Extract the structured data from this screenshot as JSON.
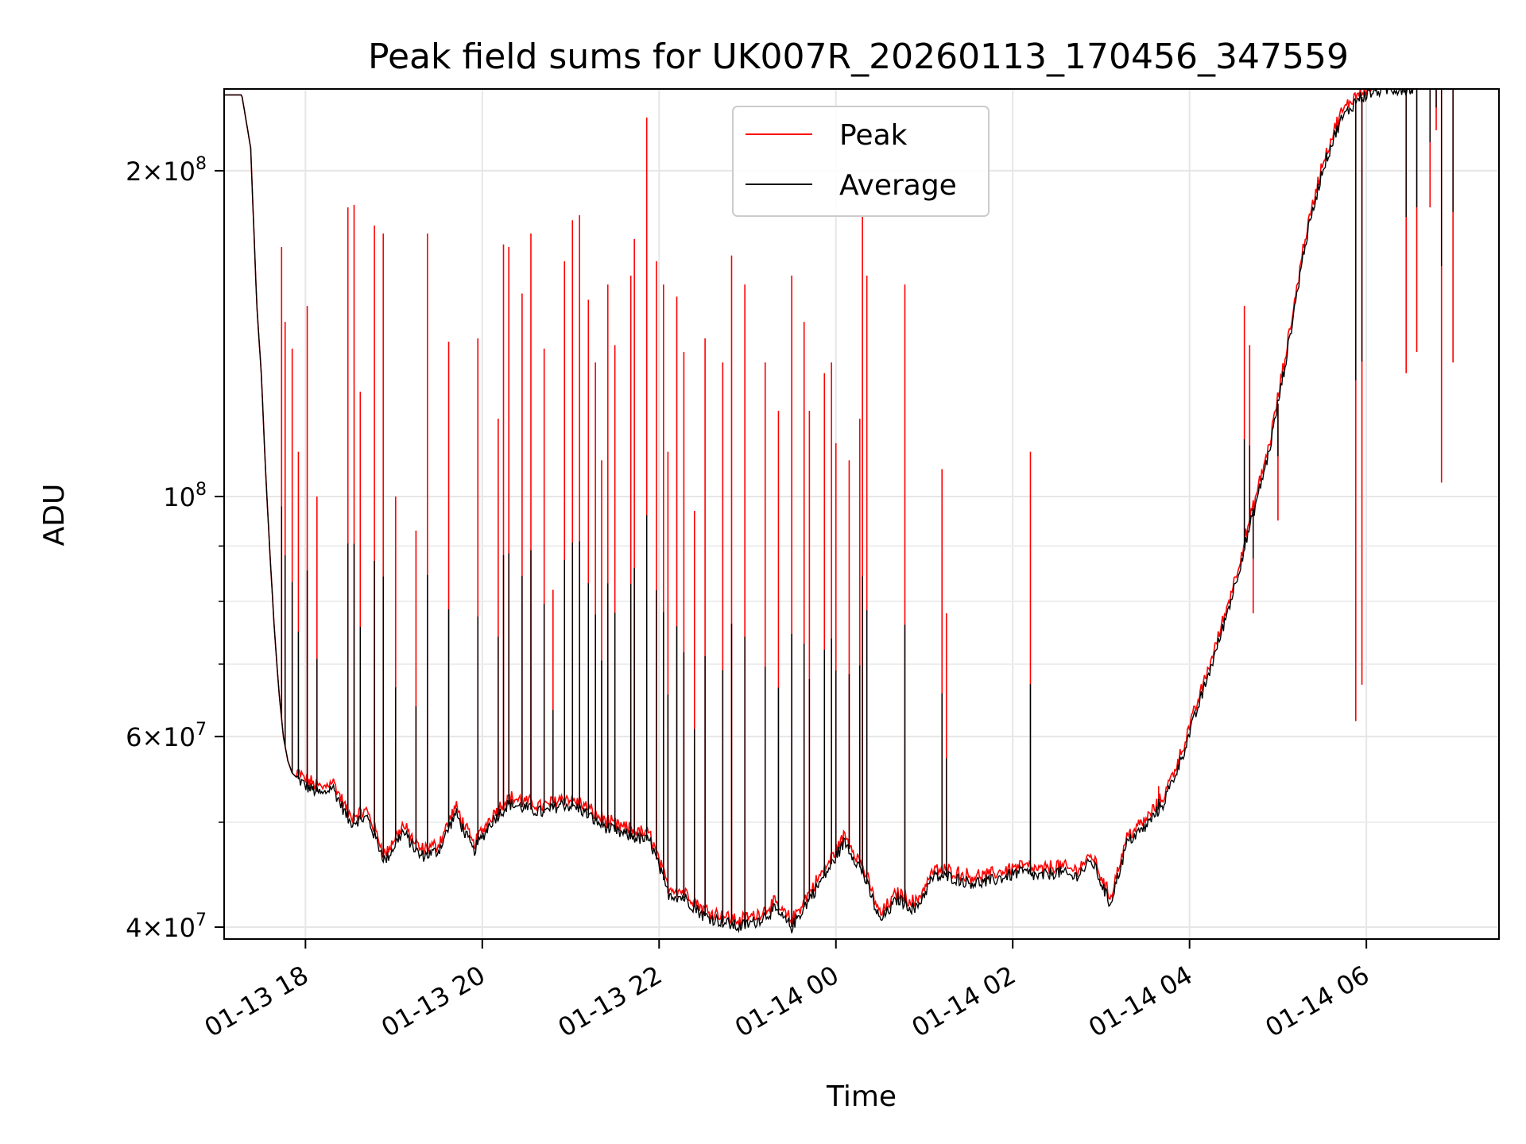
{
  "chart_data": {
    "type": "line",
    "title": "Peak field sums for UK007R_20260113_170456_347559",
    "xlabel": "Time",
    "ylabel": "ADU",
    "yscale": "log",
    "ylim": [
      39000000,
      238000000
    ],
    "xlim_hours": [
      -0.92,
      13.5
    ],
    "grid": true,
    "legend": {
      "location": "upper center",
      "entries": [
        {
          "label": "Peak",
          "color": "#ff0000"
        },
        {
          "label": "Average",
          "color": "#000000"
        }
      ]
    },
    "x_ticks": [
      {
        "hour": 0,
        "label": "01-13 18"
      },
      {
        "hour": 2,
        "label": "01-13 20"
      },
      {
        "hour": 4,
        "label": "01-13 22"
      },
      {
        "hour": 6,
        "label": "01-14 00"
      },
      {
        "hour": 8,
        "label": "01-14 02"
      },
      {
        "hour": 10,
        "label": "01-14 04"
      },
      {
        "hour": 12,
        "label": "01-14 06"
      }
    ],
    "y_ticks": [
      {
        "value": 40000000,
        "mantissa": "4",
        "exp": "7"
      },
      {
        "value": 60000000,
        "mantissa": "6",
        "exp": "7"
      },
      {
        "value": 100000000,
        "mantissa": "",
        "exp": "8"
      },
      {
        "value": 200000000,
        "mantissa": "2",
        "exp": "8"
      }
    ],
    "y_minor_ticks": [
      50000000,
      70000000,
      80000000,
      90000000
    ],
    "series": [
      {
        "name": "Average",
        "color": "#000000",
        "x_hours": [
          -0.72,
          -0.62,
          -0.55,
          -0.5,
          -0.45,
          -0.4,
          -0.35,
          -0.3,
          -0.25,
          -0.2,
          -0.15,
          -0.1,
          -0.05,
          0,
          0.1,
          0.2,
          0.3,
          0.5,
          0.7,
          0.9,
          1.1,
          1.3,
          1.5,
          1.7,
          1.9,
          2.1,
          2.3,
          2.5,
          2.7,
          2.9,
          3.1,
          3.3,
          3.5,
          3.7,
          3.9,
          4.1,
          4.3,
          4.5,
          4.7,
          4.9,
          5.1,
          5.3,
          5.5,
          5.7,
          5.9,
          6.1,
          6.3,
          6.5,
          6.7,
          6.9,
          7.1,
          7.3,
          7.5,
          7.7,
          7.9,
          8.1,
          8.3,
          8.5,
          8.7,
          8.9,
          9.1,
          9.3,
          9.5,
          9.7,
          9.9,
          10.1,
          10.3,
          10.5,
          10.7,
          10.9,
          11.1,
          11.3,
          11.5,
          11.7,
          11.9,
          12.1,
          12.3,
          12.5,
          12.55,
          12.6,
          12.65,
          12.7,
          12.75,
          12.8,
          12.85,
          12.9,
          12.95,
          13.0,
          13.05,
          13.1,
          13.15,
          13.2
        ],
        "values": [
          235000000,
          210000000,
          150000000,
          130000000,
          105000000,
          88000000,
          75000000,
          66000000,
          60000000,
          57000000,
          55500000,
          55000000,
          54500000,
          54000000,
          53500000,
          53000000,
          54000000,
          50000000,
          50500000,
          46000000,
          49000000,
          46500000,
          47000000,
          51000000,
          47000000,
          50000000,
          52000000,
          51500000,
          51000000,
          52000000,
          51500000,
          50000000,
          49000000,
          48500000,
          48000000,
          43000000,
          42500000,
          41000000,
          40500000,
          40000000,
          40500000,
          41500000,
          40000000,
          42500000,
          45000000,
          48000000,
          45000000,
          40500000,
          42500000,
          41500000,
          44500000,
          44500000,
          44000000,
          44000000,
          44500000,
          45000000,
          44500000,
          45000000,
          44500000,
          46000000,
          42000000,
          48000000,
          49500000,
          52000000,
          57000000,
          64000000,
          72000000,
          82000000,
          95000000,
          110000000,
          135000000,
          170000000,
          200000000,
          222000000,
          233000000,
          237000000,
          238000000,
          238000000,
          238000000,
          238000000,
          238000000,
          238000000,
          238000000,
          238000000,
          238000000,
          238000000,
          238000000,
          238000000,
          238000000,
          238000000,
          238000000,
          238000000
        ]
      },
      {
        "name": "Peak",
        "color": "#ff0000",
        "spikes": [
          [
            -0.55,
            150000000
          ],
          [
            -0.27,
            170000000
          ],
          [
            -0.23,
            145000000
          ],
          [
            -0.15,
            137000000
          ],
          [
            -0.08,
            110000000
          ],
          [
            0.02,
            150000000
          ],
          [
            0.13,
            100000000
          ],
          [
            0.48,
            185000000
          ],
          [
            0.55,
            186000000
          ],
          [
            0.62,
            125000000
          ],
          [
            0.78,
            178000000
          ],
          [
            0.88,
            175000000
          ],
          [
            1.02,
            100000000
          ],
          [
            1.25,
            93000000
          ],
          [
            1.38,
            175000000
          ],
          [
            1.62,
            139000000
          ],
          [
            1.95,
            140000000
          ],
          [
            2.18,
            118000000
          ],
          [
            2.24,
            171000000
          ],
          [
            2.3,
            170000000
          ],
          [
            2.45,
            154000000
          ],
          [
            2.55,
            175000000
          ],
          [
            2.7,
            137000000
          ],
          [
            2.8,
            82000000
          ],
          [
            2.93,
            165000000
          ],
          [
            3.02,
            180000000
          ],
          [
            3.1,
            182000000
          ],
          [
            3.2,
            152000000
          ],
          [
            3.28,
            133000000
          ],
          [
            3.35,
            108000000
          ],
          [
            3.42,
            157000000
          ],
          [
            3.5,
            138000000
          ],
          [
            3.68,
            160000000
          ],
          [
            3.72,
            173000000
          ],
          [
            3.86,
            224000000
          ],
          [
            3.97,
            165000000
          ],
          [
            4.05,
            157000000
          ],
          [
            4.1,
            110000000
          ],
          [
            4.2,
            153000000
          ],
          [
            4.28,
            136000000
          ],
          [
            4.4,
            97000000
          ],
          [
            4.52,
            140000000
          ],
          [
            4.72,
            133000000
          ],
          [
            4.82,
            167000000
          ],
          [
            4.97,
            157000000
          ],
          [
            5.2,
            133000000
          ],
          [
            5.35,
            120000000
          ],
          [
            5.5,
            160000000
          ],
          [
            5.64,
            145000000
          ],
          [
            5.7,
            120000000
          ],
          [
            5.87,
            130000000
          ],
          [
            5.95,
            133000000
          ],
          [
            6.0,
            112000000
          ],
          [
            6.15,
            108000000
          ],
          [
            6.27,
            118000000
          ],
          [
            6.3,
            182000000
          ],
          [
            6.35,
            160000000
          ],
          [
            6.78,
            157000000
          ],
          [
            7.2,
            106000000
          ],
          [
            7.25,
            78000000
          ],
          [
            8.2,
            110000000
          ],
          [
            9.65,
            54000000
          ],
          [
            10.62,
            150000000
          ],
          [
            10.68,
            138000000
          ],
          [
            10.72,
            78000000
          ],
          [
            11.0,
            95000000
          ],
          [
            11.88,
            62000000
          ],
          [
            11.95,
            67000000
          ],
          [
            12.45,
            130000000
          ],
          [
            12.57,
            136000000
          ],
          [
            12.72,
            185000000
          ],
          [
            12.79,
            218000000
          ],
          [
            12.85,
            103000000
          ],
          [
            12.98,
            133000000
          ]
        ]
      }
    ]
  }
}
